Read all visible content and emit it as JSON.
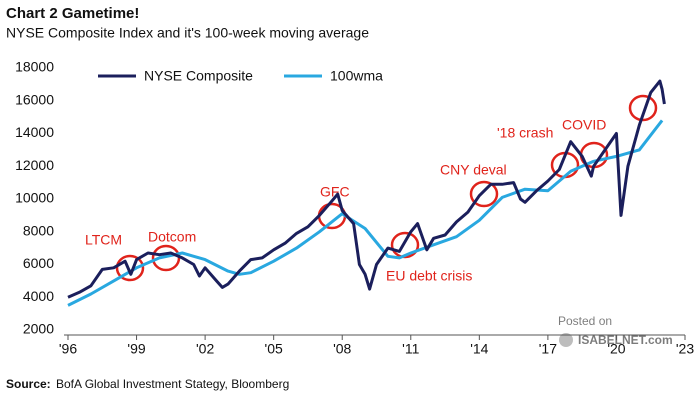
{
  "chart_data": {
    "type": "line",
    "title": "Chart 2 Gametime!",
    "subtitle": "NYSE Composite Index  and it's 100-week moving average",
    "source": {
      "label": "Source:",
      "text": "BofA Global Investment Stategy, Bloomberg"
    },
    "annotations": [
      "LTCM",
      "Dotcom",
      "GFC",
      "EU debt crisis",
      "CNY deval",
      "'18 crash",
      "COVID"
    ],
    "xlim": [
      1996,
      2023
    ],
    "xticks": [
      {
        "value": 1996,
        "label": "'96"
      },
      {
        "value": 1999,
        "label": "'99"
      },
      {
        "value": 2002,
        "label": "'02"
      },
      {
        "value": 2005,
        "label": "'05"
      },
      {
        "value": 2008,
        "label": "'08"
      },
      {
        "value": 2011,
        "label": "'11"
      },
      {
        "value": 2014,
        "label": "'14"
      },
      {
        "value": 2017,
        "label": "'17"
      },
      {
        "value": 2020,
        "label": "'20"
      },
      {
        "value": 2023,
        "label": "'23"
      }
    ],
    "ylim": [
      2000,
      18000
    ],
    "yticks": [
      2000,
      4000,
      6000,
      8000,
      10000,
      12000,
      14000,
      16000,
      18000
    ],
    "legend": "top-left",
    "series": [
      {
        "name": "NYSE Composite",
        "color": "#1b1f5c",
        "x": [
          1996,
          1996.5,
          1997,
          1997.5,
          1998,
          1998.5,
          1998.75,
          1999,
          1999.5,
          2000,
          2000.5,
          2001,
          2001.5,
          2001.75,
          2002,
          2002.5,
          2002.75,
          2003,
          2003.5,
          2004,
          2004.5,
          2005,
          2005.5,
          2006,
          2006.5,
          2007,
          2007.5,
          2007.8,
          2008,
          2008.5,
          2008.75,
          2009,
          2009.2,
          2009.5,
          2010,
          2010.5,
          2011,
          2011.3,
          2011.7,
          2012,
          2012.5,
          2013,
          2013.5,
          2014,
          2014.5,
          2015,
          2015.5,
          2015.8,
          2016,
          2016.5,
          2017,
          2017.5,
          2018,
          2018.5,
          2018.9,
          2019,
          2019.5,
          2020,
          2020.2,
          2020.5,
          2021,
          2021.5,
          2021.9,
          2022,
          2022.1
        ],
        "values": [
          4000,
          4300,
          4700,
          5700,
          5800,
          6200,
          5400,
          6300,
          6700,
          6600,
          6700,
          6400,
          6000,
          5300,
          5800,
          5000,
          4600,
          4800,
          5600,
          6300,
          6400,
          6900,
          7300,
          7900,
          8300,
          9000,
          9800,
          10300,
          9300,
          8500,
          6000,
          5400,
          4500,
          6000,
          7000,
          6800,
          8000,
          8500,
          6900,
          7600,
          7800,
          8600,
          9200,
          10200,
          10900,
          10900,
          11000,
          10000,
          9800,
          10500,
          11100,
          11800,
          13500,
          12600,
          11400,
          12000,
          13000,
          14000,
          9000,
          12000,
          14500,
          16500,
          17200,
          16700,
          15800
        ]
      },
      {
        "name": "100wma",
        "color": "#29a8e0",
        "x": [
          1996,
          1997,
          1998,
          1999,
          2000,
          2001,
          2002,
          2003,
          2003.5,
          2004,
          2005,
          2006,
          2007,
          2008,
          2009,
          2010,
          2010.5,
          2011,
          2012,
          2013,
          2014,
          2015,
          2016,
          2017,
          2018,
          2019,
          2020,
          2021,
          2022
        ],
        "values": [
          3500,
          4200,
          5000,
          5800,
          6400,
          6700,
          6300,
          5600,
          5400,
          5500,
          6200,
          7000,
          8000,
          9100,
          8200,
          6500,
          6400,
          6700,
          7200,
          7700,
          8700,
          10100,
          10600,
          10500,
          11700,
          12300,
          12600,
          13000,
          14800
        ]
      }
    ]
  },
  "watermark": {
    "top": "Posted on",
    "site": "ISABELNET.com"
  }
}
